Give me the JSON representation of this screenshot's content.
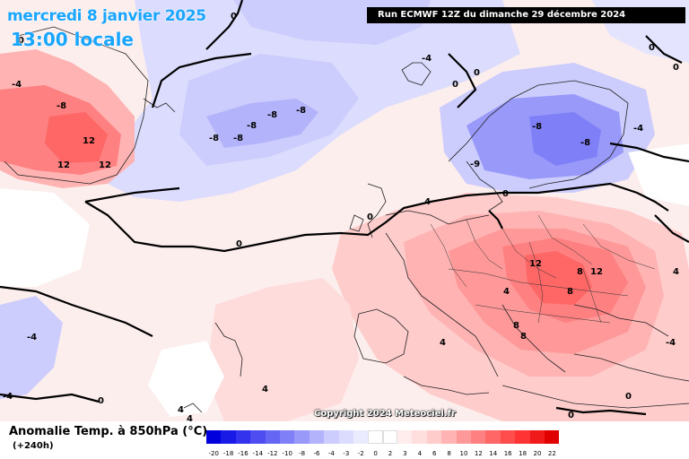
{
  "header": {
    "date": "mercredi 8 janvier 2025",
    "time": "13:00 locale",
    "run": "Run ECMWF 12Z du dimanche 29 décembre 2024"
  },
  "footer": {
    "copyright": "Copyright 2024 Meteociel.fr",
    "legend_title": "Anomalie Temp. à 850hPa (°C)",
    "lead_time": "(+240h)"
  },
  "legend": {
    "values": [
      "-20",
      "-18",
      "-16",
      "-14",
      "-12",
      "-10",
      "-8",
      "-6",
      "-4",
      "-3",
      "-2",
      "0",
      "2",
      "3",
      "4",
      "6",
      "8",
      "10",
      "12",
      "14",
      "16",
      "18",
      "20",
      "22"
    ],
    "colors": [
      "#0000dd",
      "#1a1ae6",
      "#3333ee",
      "#4d4df2",
      "#6666f5",
      "#7f7ff7",
      "#9999fa",
      "#b3b3fc",
      "#ccccfd",
      "#dcdcfe",
      "#ebebff",
      "#ffffff",
      "#ffffff",
      "#ffeded",
      "#ffdede",
      "#ffcccc",
      "#ffb3b3",
      "#ff9999",
      "#ff8080",
      "#ff6666",
      "#ff4d4d",
      "#ff3333",
      "#f01a1a",
      "#e00000"
    ]
  },
  "map_labels": [
    "12",
    "12",
    "12",
    "0",
    "0",
    "0",
    "0",
    "0",
    "0",
    "0",
    "0",
    "0",
    "0",
    "0",
    "-4",
    "-4",
    "-8",
    "-8",
    "-8",
    "-8",
    "-8",
    "-8",
    "-8",
    "-8",
    "-9",
    "-4",
    "0",
    "12",
    "8",
    "12",
    "8",
    "8",
    "8",
    "4",
    "4",
    "4",
    "4",
    "4",
    "4",
    "4",
    "-4",
    "-4",
    "-4"
  ],
  "colors": {
    "title": "#1aa6ff",
    "warm": "#ff8080",
    "cold": "#9999fa"
  }
}
